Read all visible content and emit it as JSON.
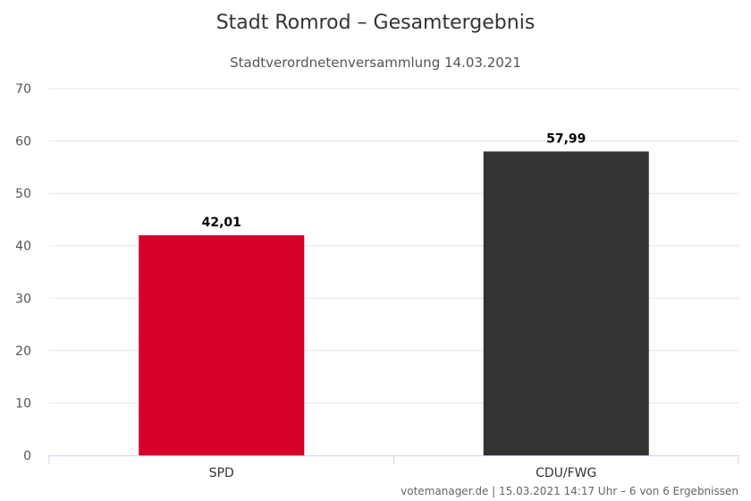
{
  "chart_data": {
    "type": "bar",
    "title": "Stadt Romrod – Gesamtergebnis",
    "subtitle": "Stadtverordnetenversammlung 14.03.2021",
    "categories": [
      "SPD",
      "CDU/FWG"
    ],
    "values": [
      42.01,
      57.99
    ],
    "data_labels": [
      "42,01",
      "57,99"
    ],
    "colors": [
      "#d4002a",
      "#333333"
    ],
    "ylim": [
      0,
      70
    ],
    "yticks": [
      0,
      10,
      20,
      30,
      40,
      50,
      60,
      70
    ],
    "grid": true,
    "xlabel": "",
    "ylabel": ""
  },
  "credits": "votemanager.de | 15.03.2021 14:17 Uhr – 6 von 6 Ergebnissen"
}
